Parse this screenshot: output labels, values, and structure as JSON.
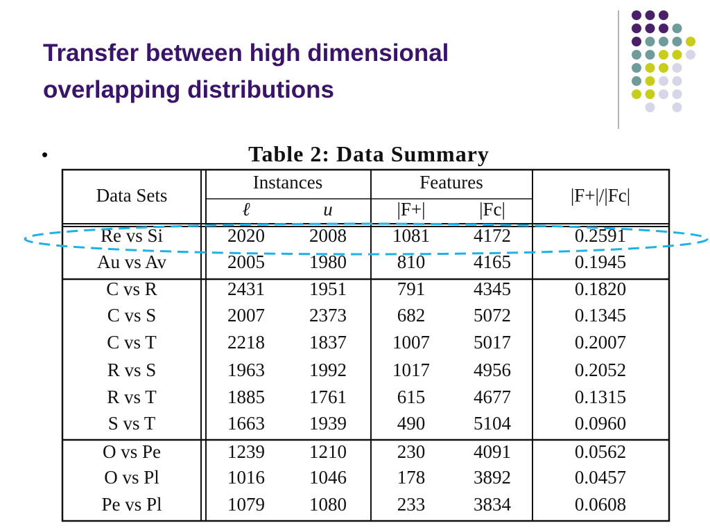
{
  "header": {
    "title": [
      "Transfer between high dimensional",
      "overlapping distributions"
    ]
  },
  "table": {
    "caption": "Table 2:  Data Summary",
    "headers": {
      "datasets": "Data Sets",
      "instances": "Instances",
      "features": "Features",
      "ratio": "|F+|/|Fc|",
      "sub": [
        "ℓ",
        "u",
        "|F+|",
        "|Fc|"
      ]
    },
    "rows": [
      [
        "Re vs Si",
        "2020",
        "2008",
        "1081",
        "4172",
        "0.2591"
      ],
      [
        "Au vs Av",
        "2005",
        "1980",
        "810",
        "4165",
        "0.1945"
      ],
      [
        "C vs R",
        "2431",
        "1951",
        "791",
        "4345",
        "0.1820"
      ],
      [
        "C vs S",
        "2007",
        "2373",
        "682",
        "5072",
        "0.1345"
      ],
      [
        "C vs T",
        "2218",
        "1837",
        "1007",
        "5017",
        "0.2007"
      ],
      [
        "R vs S",
        "1963",
        "1992",
        "1017",
        "4956",
        "0.2052"
      ],
      [
        "R vs T",
        "1885",
        "1761",
        "615",
        "4677",
        "0.1315"
      ],
      [
        "S vs T",
        "1663",
        "1939",
        "490",
        "5104",
        "0.0960"
      ],
      [
        "O vs Pe",
        "1239",
        "1210",
        "230",
        "4091",
        "0.0562"
      ],
      [
        "O vs Pl",
        "1016",
        "1046",
        "178",
        "3892",
        "0.0457"
      ],
      [
        "Pe vs Pl",
        "1079",
        "1080",
        "233",
        "3834",
        "0.0608"
      ]
    ]
  }
}
